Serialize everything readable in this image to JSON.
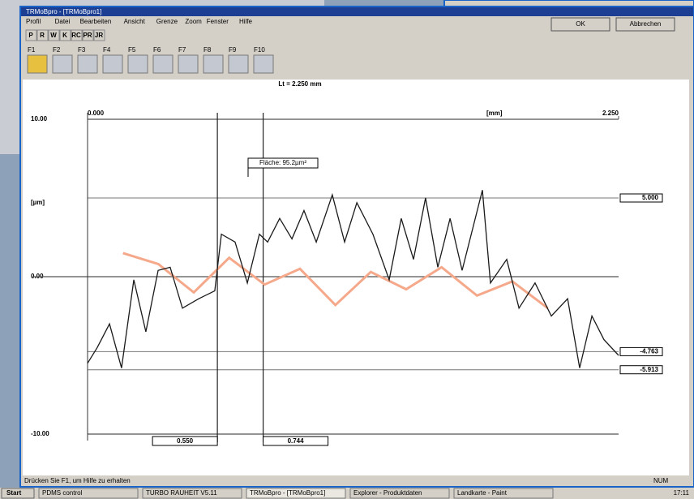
{
  "window": {
    "title": "TRMoBpro - [TRMoBpro1]",
    "menu": [
      "Profil",
      "Datei",
      "Bearbeiten",
      "Ansicht",
      "Grenze",
      "Zoom",
      "Fenster",
      "Hilfe"
    ],
    "toolbar": [
      "P",
      "R",
      "W",
      "K",
      "RC",
      "PR",
      "JR"
    ],
    "function_keys": [
      "F1",
      "F2",
      "F3",
      "F4",
      "F5",
      "F6",
      "F7",
      "F8",
      "F9",
      "F10"
    ]
  },
  "dialog": {
    "buttons": [
      "OK",
      "Abbrechen"
    ]
  },
  "chart": {
    "type": "line",
    "title": "Lt = 2.250 mm",
    "x_unit": "[mm]",
    "y_unit": "[µm]",
    "xlim": [
      0,
      2.25
    ],
    "xticks": [
      {
        "value": 0,
        "label": "0.000"
      },
      {
        "value": 2.25,
        "label": "2.250"
      }
    ],
    "ylim": [
      -10,
      10
    ],
    "yticks": [
      {
        "value": 10,
        "label": "10.00"
      },
      {
        "value": 0,
        "label": "0.00"
      },
      {
        "value": -10,
        "label": "-10.00"
      }
    ],
    "levels": [
      {
        "value": 5,
        "label": "5.000"
      },
      {
        "value": -4.763,
        "label": "-4.763"
      },
      {
        "value": -5.913,
        "label": "-5.913"
      }
    ],
    "cursors": [
      {
        "value": 0.55,
        "label": "0.550"
      },
      {
        "value": 0.744,
        "label": "0.744"
      }
    ],
    "area_label": "Fläche: 95.2µm²",
    "series": [
      {
        "color": "#f5a88a",
        "x": [
          0.15,
          0.3,
          0.45,
          0.6,
          0.75,
          0.9,
          1.05,
          1.2,
          1.35,
          1.5,
          1.65,
          1.8,
          1.95
        ],
        "values": [
          1.5,
          0.8,
          -1,
          1.2,
          -0.5,
          0.5,
          -1.8,
          0.3,
          -0.8,
          0.6,
          -1.2,
          -0.3,
          -2
        ]
      },
      {
        "color": "#1a1a1a",
        "x": [
          0,
          0.041,
          0.093,
          0.144,
          0.196,
          0.247,
          0.299,
          0.35,
          0.402,
          0.471,
          0.539,
          0.567,
          0.625,
          0.677,
          0.728,
          0.763,
          0.814,
          0.866,
          0.917,
          0.969,
          1.037,
          1.089,
          1.141,
          1.209,
          1.278,
          1.329,
          1.381,
          1.432,
          1.484,
          1.536,
          1.587,
          1.673,
          1.707,
          1.776,
          1.828,
          1.896,
          1.965,
          2.034,
          2.085,
          2.137,
          2.188,
          2.25
        ],
        "values": [
          -5.5,
          -4.5,
          -3,
          -5.8,
          -0.2,
          -3.5,
          0.4,
          0.6,
          -2,
          -1.4,
          -0.9,
          2.7,
          2.2,
          -0.4,
          2.7,
          2.2,
          3.7,
          2.4,
          4.2,
          2.2,
          5.2,
          2.2,
          4.7,
          2.7,
          -0.2,
          3.7,
          1.1,
          5,
          0.6,
          3.7,
          0.4,
          5.5,
          -0.4,
          1.1,
          -2,
          -0.4,
          -2.5,
          -1.4,
          -5.8,
          -2.5,
          -4,
          -5
        ]
      }
    ]
  },
  "status": [
    "Drücken Sie F1, um Hilfe zu erhalten",
    "NUM"
  ],
  "taskbar": {
    "start": "Start",
    "items": [
      "PDMS control",
      "TURBO RAUHEIT V5.11",
      "TRMoBpro - [TRMoBpro1]",
      "Explorer - Produktdaten",
      "Landkarte - Paint"
    ],
    "clock": "17:11"
  }
}
